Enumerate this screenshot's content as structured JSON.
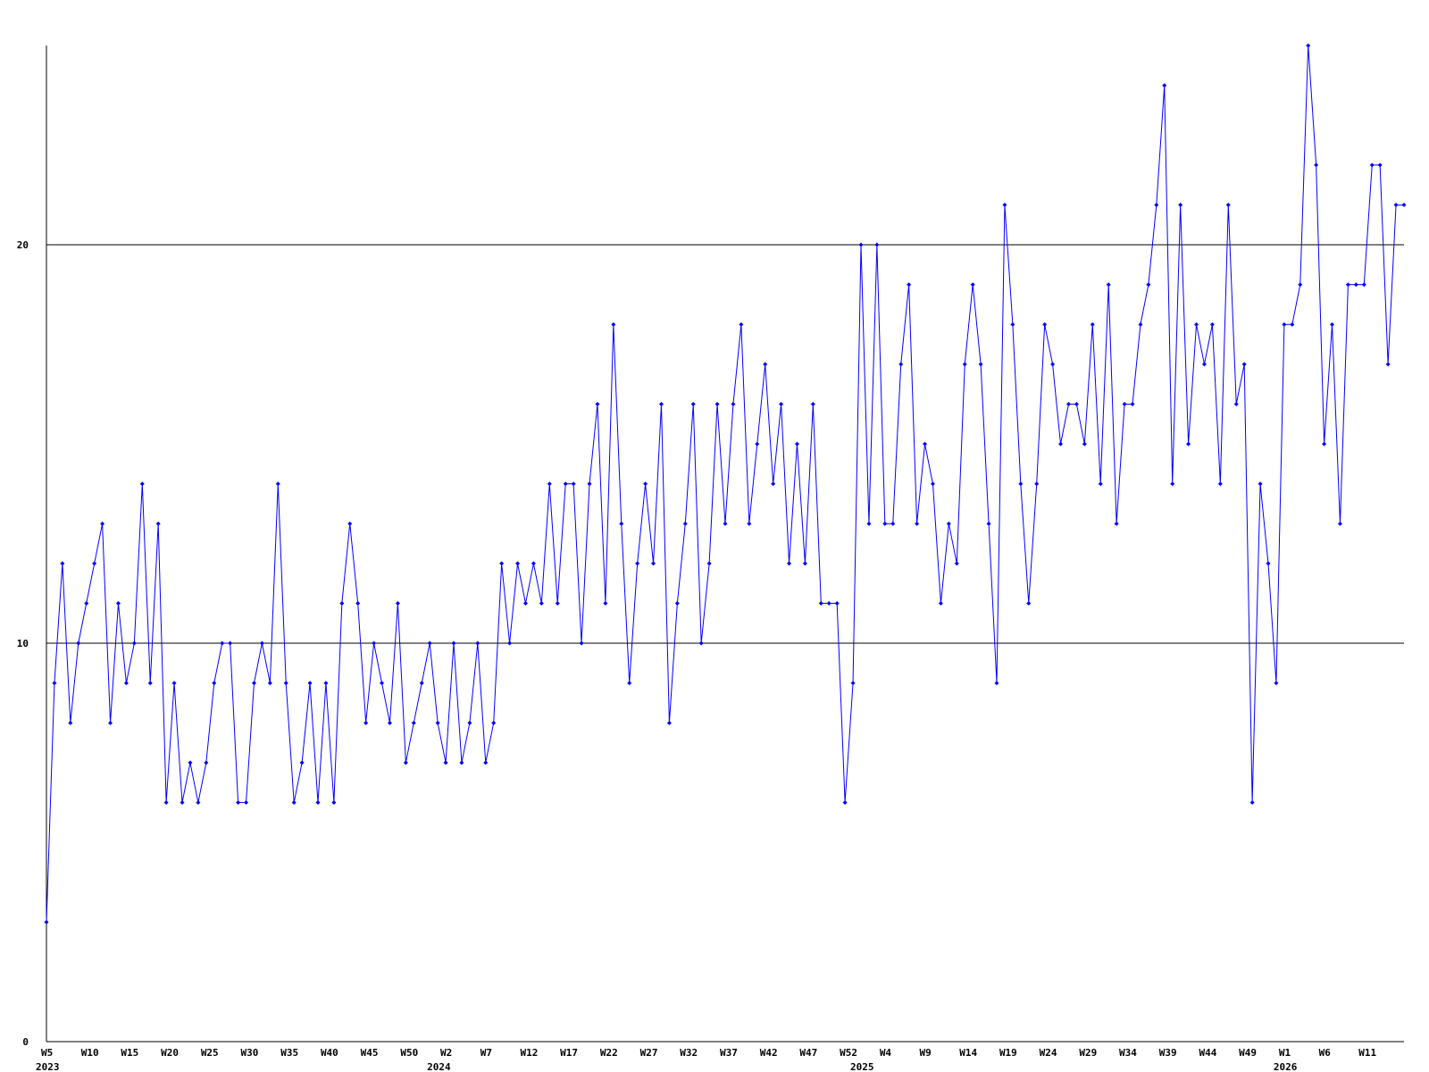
{
  "chart_data": {
    "type": "line",
    "categories": [
      "W5",
      null,
      null,
      null,
      null,
      "W10",
      null,
      null,
      null,
      null,
      "W15",
      null,
      null,
      null,
      null,
      "W20",
      null,
      null,
      null,
      null,
      "W25",
      null,
      null,
      null,
      null,
      "W30",
      null,
      null,
      null,
      null,
      "W35",
      null,
      null,
      null,
      null,
      "W40",
      null,
      null,
      null,
      null,
      "W45",
      null,
      null,
      null,
      null,
      "W50",
      null,
      null,
      null,
      null,
      "W2",
      null,
      null,
      null,
      null,
      "W7",
      null,
      null,
      null,
      null,
      "W12",
      null,
      null,
      null,
      null,
      "W17",
      null,
      null,
      null,
      null,
      "W22",
      null,
      null,
      null,
      null,
      "W27",
      null,
      null,
      null,
      null,
      "W32",
      null,
      null,
      null,
      null,
      "W37",
      null,
      null,
      null,
      null,
      "W42",
      null,
      null,
      null,
      null,
      "W47",
      null,
      null,
      null,
      null,
      "W52",
      null,
      null,
      null,
      null,
      "W4",
      null,
      null,
      null,
      null,
      "W9",
      null,
      null,
      null,
      null,
      "W14",
      null,
      null,
      null,
      null,
      "W19",
      null,
      null,
      null,
      null,
      "W24",
      null,
      null,
      null,
      null,
      "W29",
      null,
      null,
      null,
      null,
      "W34",
      null,
      null,
      null,
      null,
      "W39",
      null,
      null,
      null,
      null,
      "W44",
      null,
      null,
      null,
      null,
      "W49",
      null,
      null,
      null,
      null,
      "W1",
      null,
      null,
      null,
      null,
      "W6",
      null,
      null,
      null,
      null,
      "W11",
      null,
      null,
      null,
      null,
      null
    ],
    "year_labels": [
      "2023",
      null,
      null,
      null,
      null,
      null,
      null,
      null,
      null,
      null,
      null,
      null,
      null,
      null,
      null,
      null,
      null,
      null,
      null,
      null,
      null,
      null,
      null,
      null,
      null,
      null,
      null,
      null,
      null,
      null,
      null,
      null,
      null,
      null,
      null,
      null,
      null,
      null,
      null,
      null,
      null,
      null,
      null,
      null,
      null,
      null,
      null,
      null,
      null,
      "2024",
      null,
      null,
      null,
      null,
      null,
      null,
      null,
      null,
      null,
      null,
      null,
      null,
      null,
      null,
      null,
      null,
      null,
      null,
      null,
      null,
      null,
      null,
      null,
      null,
      null,
      null,
      null,
      null,
      null,
      null,
      null,
      null,
      null,
      null,
      null,
      null,
      null,
      null,
      null,
      null,
      null,
      null,
      null,
      null,
      null,
      null,
      null,
      null,
      null,
      null,
      null,
      null,
      "2025",
      null,
      null,
      null,
      null,
      null,
      null,
      null,
      null,
      null,
      null,
      null,
      null,
      null,
      null,
      null,
      null,
      null,
      null,
      null,
      null,
      null,
      null,
      null,
      null,
      null,
      null,
      null,
      null,
      null,
      null,
      null,
      null,
      null,
      null,
      null,
      null,
      null,
      null,
      null,
      null,
      null,
      null,
      null,
      null,
      null,
      null,
      null,
      null,
      null,
      null,
      null,
      null,
      "2026",
      null,
      null,
      null,
      null,
      null,
      null,
      null,
      null,
      null,
      null,
      null,
      null,
      null,
      null,
      null
    ],
    "series": [
      {
        "color": "#0000ff",
        "values": [
          3,
          9,
          12,
          8,
          10,
          11,
          12,
          13,
          8,
          11,
          9,
          10,
          14,
          9,
          13,
          6,
          9,
          6,
          7,
          6,
          7,
          9,
          10,
          10,
          6,
          6,
          9,
          10,
          9,
          14,
          9,
          6,
          7,
          9,
          6,
          9,
          6,
          11,
          13,
          11,
          8,
          10,
          9,
          8,
          11,
          7,
          8,
          9,
          10,
          8,
          7,
          10,
          7,
          8,
          10,
          7,
          8,
          12,
          10,
          12,
          11,
          12,
          11,
          14,
          11,
          14,
          14,
          10,
          14,
          16,
          11,
          18,
          13,
          9,
          12,
          14,
          12,
          16,
          8,
          11,
          13,
          16,
          10,
          12,
          16,
          13,
          16,
          18,
          13,
          15,
          17,
          14,
          16,
          12,
          15,
          12,
          16,
          11,
          11,
          11,
          6,
          9,
          20,
          13,
          20,
          13,
          13,
          17,
          19,
          13,
          15,
          14,
          11,
          13,
          12,
          17,
          19,
          17,
          13,
          9,
          21,
          18,
          14,
          11,
          14,
          18,
          17,
          15,
          16,
          16,
          15,
          18,
          14,
          19,
          13,
          16,
          16,
          18,
          19,
          21,
          24,
          14,
          21,
          15,
          18,
          17,
          18,
          14,
          21,
          16,
          17,
          6,
          14,
          12,
          9,
          18,
          18,
          19,
          25,
          22,
          15,
          18,
          13,
          19,
          19,
          19,
          22,
          22,
          17,
          21,
          21
        ]
      }
    ],
    "ylim": [
      0,
      25
    ],
    "yticks": [
      0,
      10,
      20
    ],
    "grid": true
  }
}
